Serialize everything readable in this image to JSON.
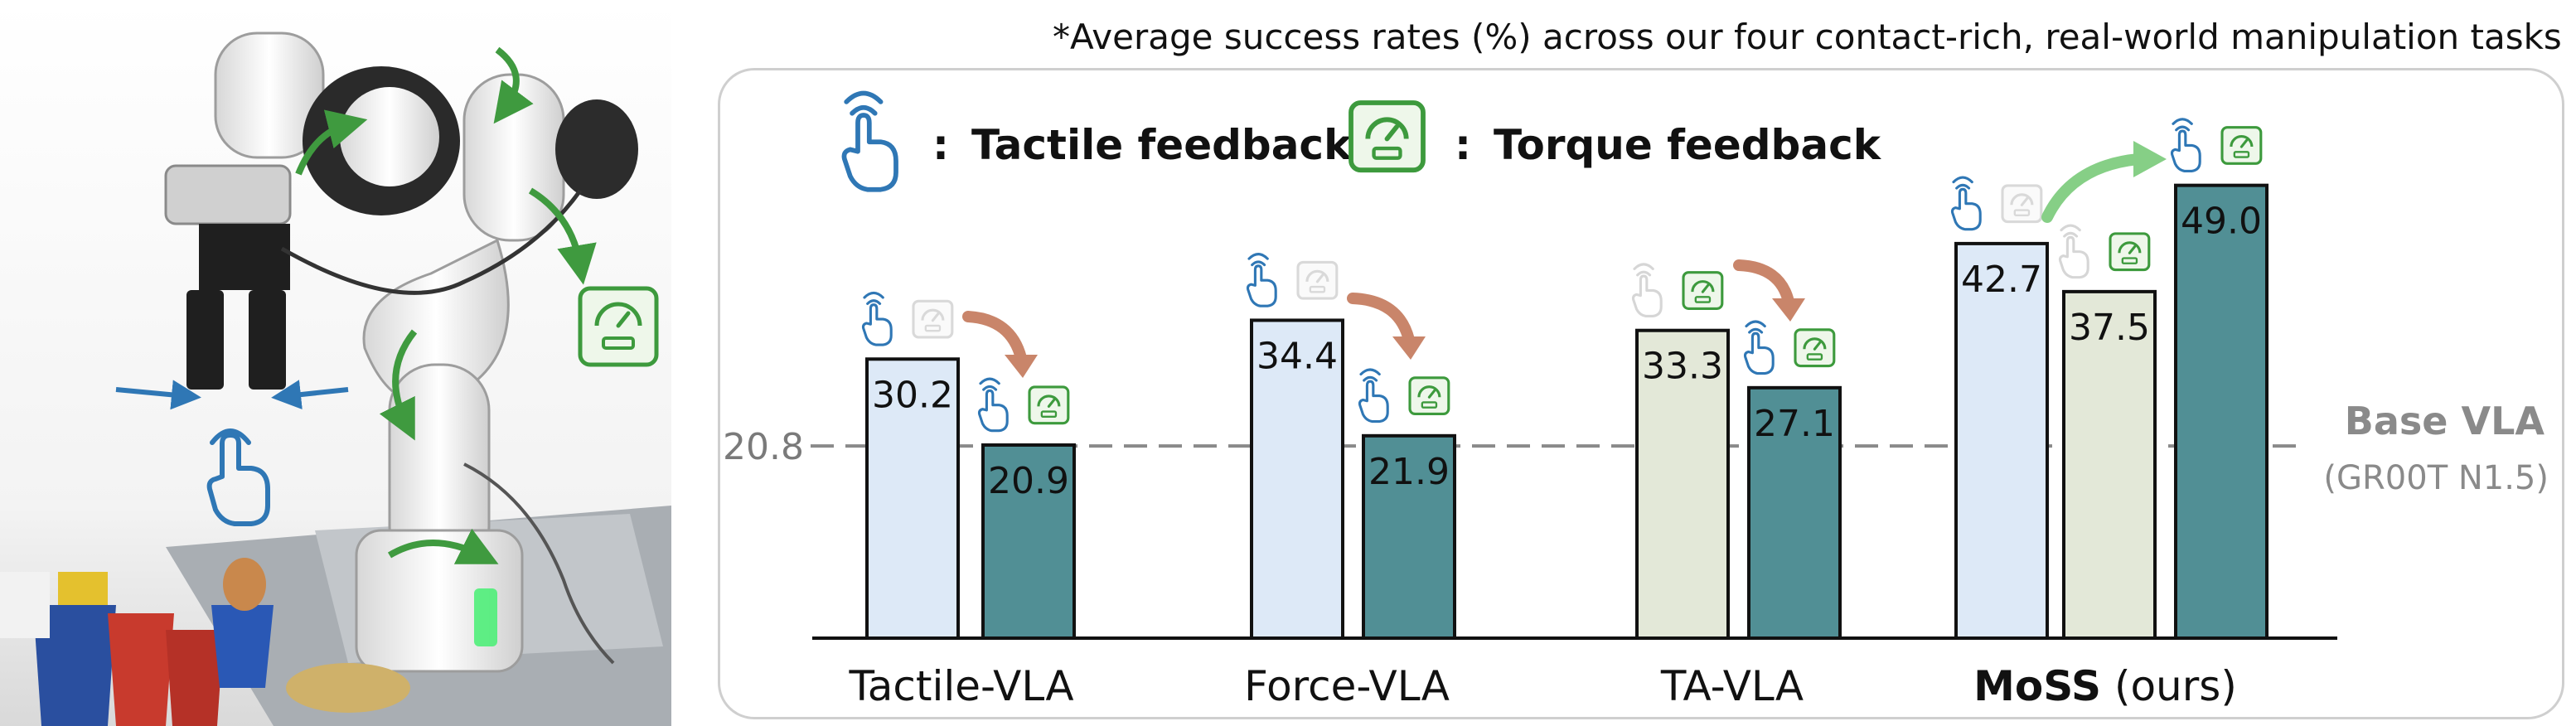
{
  "footnote": "*Average success rates (%) across our four contact-rich, real-world manipulation tasks",
  "legend": [
    {
      "icon": "tactile-hand-icon",
      "label": "Tactile feedback"
    },
    {
      "icon": "torque-gauge-icon",
      "label": "Torque feedback"
    }
  ],
  "legend_separator": ":",
  "colors": {
    "tactile_bar": "#dde9f7",
    "torque_bar": "#e3e8d8",
    "combined_bar": "#518f95",
    "tactile_icon": "#2f77b5",
    "torque_icon": "#3d9a3d",
    "arrow_down": "#c9856a",
    "arrow_up": "#86cf86",
    "robot_arrow": "#3f9a3f"
  },
  "chart_data": {
    "type": "bar",
    "categories": [
      "Tactile-VLA",
      "Force-VLA",
      "TA-VLA",
      "MoSS"
    ],
    "category_suffix": [
      "",
      "",
      "",
      " (ours)"
    ],
    "groups": [
      {
        "bars": [
          {
            "value": 30.2,
            "label": "30.2",
            "kind": "tactile",
            "icons": {
              "tactile": true,
              "torque": false
            }
          },
          {
            "value": 20.9,
            "label": "20.9",
            "kind": "combined",
            "icons": {
              "tactile": true,
              "torque": true
            }
          }
        ]
      },
      {
        "bars": [
          {
            "value": 34.4,
            "label": "34.4",
            "kind": "tactile",
            "icons": {
              "tactile": true,
              "torque": false
            }
          },
          {
            "value": 21.9,
            "label": "21.9",
            "kind": "combined",
            "icons": {
              "tactile": true,
              "torque": true
            }
          }
        ]
      },
      {
        "bars": [
          {
            "value": 33.3,
            "label": "33.3",
            "kind": "torque",
            "icons": {
              "tactile": false,
              "torque": true
            }
          },
          {
            "value": 27.1,
            "label": "27.1",
            "kind": "combined",
            "icons": {
              "tactile": true,
              "torque": true
            }
          }
        ]
      },
      {
        "bars": [
          {
            "value": 42.7,
            "label": "42.7",
            "kind": "tactile",
            "icons": {
              "tactile": true,
              "torque": false
            }
          },
          {
            "value": 37.5,
            "label": "37.5",
            "kind": "torque",
            "icons": {
              "tactile": false,
              "torque": true
            }
          },
          {
            "value": 49.0,
            "label": "49.0",
            "kind": "combined",
            "icons": {
              "tactile": true,
              "torque": true
            }
          }
        ]
      }
    ],
    "baseline": {
      "value": 20.8,
      "label": "20.8",
      "name": "Base VLA",
      "subname": "(GR00T N1.5)"
    },
    "ylim": [
      0,
      54
    ],
    "grid": false,
    "legend_position": "top-left"
  }
}
